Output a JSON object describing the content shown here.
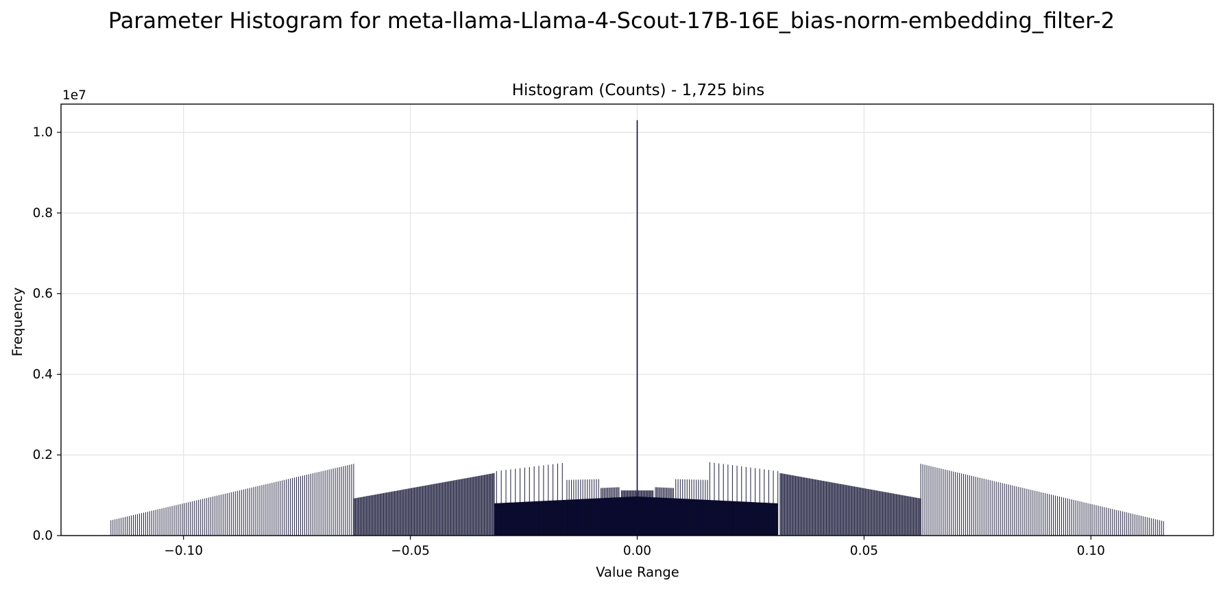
{
  "figure": {
    "title": "Parameter Histogram for meta-llama-Llama-4-Scout-17B-16E_bias-norm-embedding_filter-2"
  },
  "chart_data": {
    "type": "bar",
    "title": "Histogram (Counts) - 1,725 bins",
    "xlabel": "Value Range",
    "ylabel": "Frequency",
    "y_offset_label": "1e7",
    "xlim": [
      -0.127,
      0.127
    ],
    "ylim": [
      0,
      1.07
    ],
    "y_scale_factor": 10000000,
    "x_ticks": [
      -0.1,
      -0.05,
      0.0,
      0.05,
      0.1
    ],
    "x_tick_labels": [
      "−0.10",
      "−0.05",
      "0.00",
      "0.05",
      "0.10"
    ],
    "y_ticks": [
      0.0,
      0.2,
      0.4,
      0.6,
      0.8,
      1.0
    ],
    "y_tick_labels": [
      "0.0",
      "0.2",
      "0.4",
      "0.6",
      "0.8",
      "1.0"
    ],
    "grid": true,
    "bar_color": "#0b0b2e",
    "bins": 1725,
    "x_range": [
      -0.1165,
      0.1165
    ],
    "peak": {
      "x": 0.0,
      "value": 1.03
    },
    "segments": [
      {
        "x_start": -0.116,
        "x_end": -0.0625,
        "y_start": 0.038,
        "y_end": 0.178,
        "spacing": 0.00045
      },
      {
        "x_start": -0.0625,
        "x_end": -0.0315,
        "y_start": 0.092,
        "y_end": 0.155,
        "spacing": 0.0002
      },
      {
        "x_start": -0.031,
        "x_end": -0.0165,
        "y_start": 0.16,
        "y_end": 0.18,
        "spacing": 0.001
      },
      {
        "x_start": -0.0155,
        "x_end": -0.0085,
        "y_start": 0.138,
        "y_end": 0.14,
        "spacing": 0.0005
      },
      {
        "x_start": -0.008,
        "x_end": -0.004,
        "y_start": 0.118,
        "y_end": 0.12,
        "spacing": 0.00025
      },
      {
        "x_start": -0.0035,
        "x_end": 0.0035,
        "y_start": 0.112,
        "y_end": 0.112,
        "spacing": 0.0002
      },
      {
        "x_start": 0.004,
        "x_end": 0.008,
        "y_start": 0.12,
        "y_end": 0.118,
        "spacing": 0.00025
      },
      {
        "x_start": 0.0085,
        "x_end": 0.0155,
        "y_start": 0.14,
        "y_end": 0.138,
        "spacing": 0.0005
      },
      {
        "x_start": 0.016,
        "x_end": 0.031,
        "y_start": 0.182,
        "y_end": 0.16,
        "spacing": 0.001
      },
      {
        "x_start": 0.0315,
        "x_end": 0.0625,
        "y_start": 0.155,
        "y_end": 0.092,
        "spacing": 0.0002
      },
      {
        "x_start": 0.0625,
        "x_end": 0.116,
        "y_start": 0.178,
        "y_end": 0.036,
        "spacing": 0.00045
      }
    ],
    "core": {
      "x_start": -0.0315,
      "x_end": 0.031,
      "y_edge": 0.08,
      "y_center": 0.097
    }
  }
}
